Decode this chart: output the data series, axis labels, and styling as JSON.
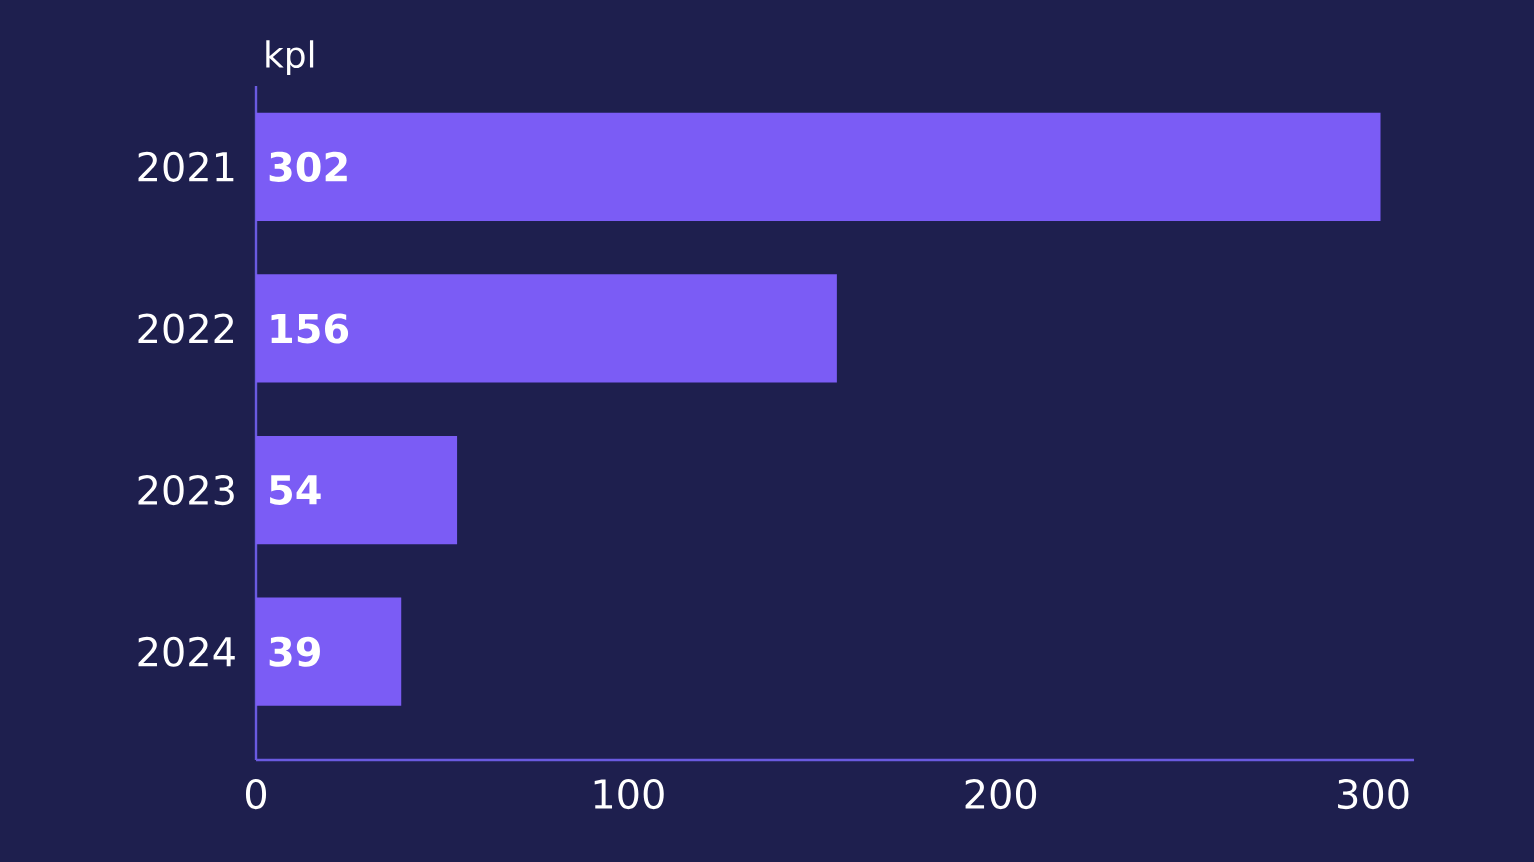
{
  "chart_data": {
    "type": "bar",
    "orientation": "horizontal",
    "ylabel": "kpl",
    "categories": [
      "2021",
      "2022",
      "2023",
      "2024"
    ],
    "values": [
      302,
      156,
      54,
      39
    ],
    "color": "#7b5cf5",
    "xlim": [
      0,
      311
    ],
    "xticks": [
      0,
      100,
      200,
      300
    ],
    "data_labels": true
  }
}
